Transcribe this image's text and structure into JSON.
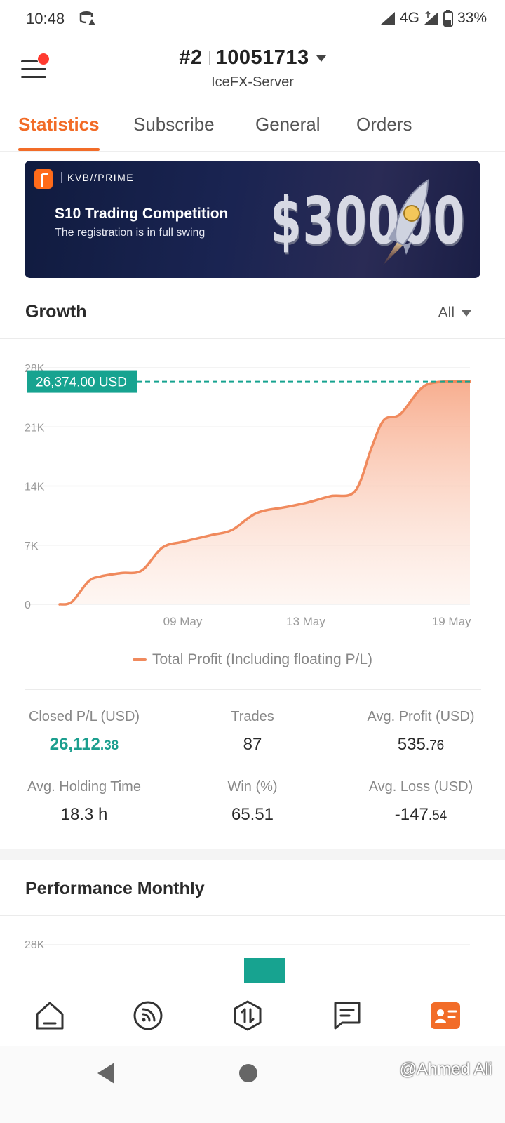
{
  "status_bar": {
    "time": "10:48",
    "network": "4G",
    "battery": "33%"
  },
  "header": {
    "account_rank": "#2",
    "account_number": "10051713",
    "server": "IceFX-Server"
  },
  "tabs": [
    {
      "label": "Statistics",
      "active": true
    },
    {
      "label": "Subscribe",
      "active": false
    },
    {
      "label": "General",
      "active": false
    },
    {
      "label": "Orders",
      "active": false
    }
  ],
  "banner": {
    "brand": "KVB//PRIME",
    "title": "S10 Trading Competition",
    "subtitle": "The registration is in full swing",
    "prize": "$30000"
  },
  "growth": {
    "title": "Growth",
    "range_label": "All"
  },
  "chart_data": {
    "type": "area",
    "ylim": [
      0,
      28000
    ],
    "y_ticks": [
      "28K",
      "21K",
      "14K",
      "7K",
      "0"
    ],
    "y_tick_values": [
      28000,
      21000,
      14000,
      7000,
      0
    ],
    "x_ticks": [
      "09 May",
      "13 May",
      "19 May"
    ],
    "current_value_label": "26,374.00 USD",
    "current_value": 26374,
    "series": [
      {
        "name": "Total Profit (Including floating P/L)",
        "color": "#f08a5d",
        "points": [
          [
            0.0,
            0
          ],
          [
            0.03,
            300
          ],
          [
            0.07,
            2700
          ],
          [
            0.1,
            3300
          ],
          [
            0.15,
            3700
          ],
          [
            0.2,
            4000
          ],
          [
            0.25,
            6700
          ],
          [
            0.3,
            7400
          ],
          [
            0.37,
            8200
          ],
          [
            0.42,
            8800
          ],
          [
            0.48,
            10800
          ],
          [
            0.55,
            11500
          ],
          [
            0.6,
            12000
          ],
          [
            0.66,
            12800
          ],
          [
            0.72,
            13400
          ],
          [
            0.76,
            18500
          ],
          [
            0.79,
            21800
          ],
          [
            0.83,
            22500
          ],
          [
            0.88,
            25500
          ],
          [
            0.92,
            26300
          ],
          [
            1.0,
            26374
          ]
        ]
      }
    ]
  },
  "stats": [
    {
      "label": "Closed P/L (USD)",
      "int": "26,112",
      "dec": ".38",
      "green": true
    },
    {
      "label": "Trades",
      "int": "87",
      "dec": "",
      "green": false
    },
    {
      "label": "Avg. Profit (USD)",
      "int": "535",
      "dec": ".76",
      "green": false
    },
    {
      "label": "Avg. Holding Time",
      "int": "18.3 h",
      "dec": "",
      "green": false
    },
    {
      "label": "Win (%)",
      "int": "65.51",
      "dec": "",
      "green": false
    },
    {
      "label": "Avg. Loss (USD)",
      "int": "-147",
      "dec": ".54",
      "green": false
    }
  ],
  "performance": {
    "title": "Performance Monthly",
    "y_top_tick": "28K",
    "bar_color": "#17a390"
  },
  "bottom_nav": [
    {
      "name": "home-icon",
      "active": false
    },
    {
      "name": "signal-feed-icon",
      "active": false
    },
    {
      "name": "trade-icon",
      "active": false
    },
    {
      "name": "messages-icon",
      "active": false
    },
    {
      "name": "profile-card-icon",
      "active": true
    }
  ],
  "watermark": "@Ahmed Ali",
  "colors": {
    "accent": "#f26c28",
    "green": "#1b9e8e",
    "area_line": "#f08a5d"
  }
}
